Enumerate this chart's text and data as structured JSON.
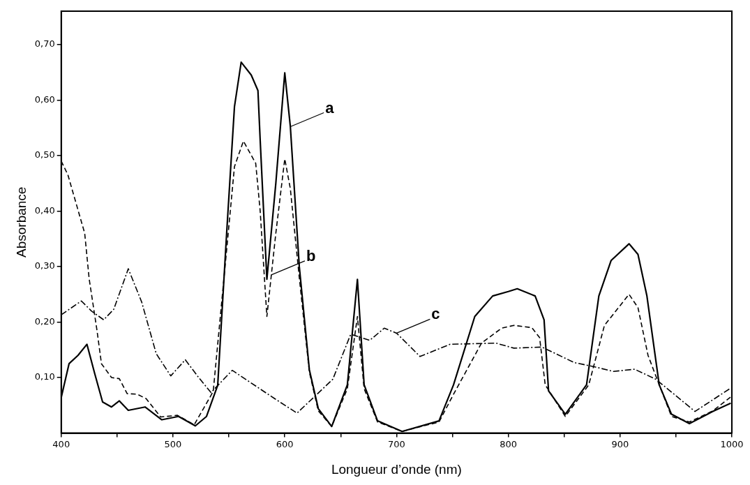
{
  "chart_data": {
    "type": "line",
    "xlabel": "Longueur d’onde (nm)",
    "ylabel": "Absorbance",
    "xlim": [
      400,
      1000
    ],
    "xticks": [
      400,
      {
        "value": 450,
        "label": null
      },
      500,
      {
        "value": 550,
        "label": null
      },
      600,
      {
        "value": 650,
        "label": null
      },
      700,
      {
        "value": 750,
        "label": null
      },
      800,
      {
        "value": 850,
        "label": null
      },
      900,
      {
        "value": 950,
        "label": null
      },
      1000
    ],
    "ylim": [
      0,
      0.76
    ],
    "yticks": [
      {
        "value": 0.1,
        "label": "0,10"
      },
      {
        "value": 0.2,
        "label": "0,20"
      },
      {
        "value": 0.3,
        "label": "0,30"
      },
      {
        "value": 0.4,
        "label": "0,40"
      },
      {
        "value": 0.5,
        "label": "0,50"
      },
      {
        "value": 0.6,
        "label": "0,60"
      },
      {
        "value": 0.7,
        "label": "0,70"
      }
    ],
    "grid": false,
    "legend": false,
    "marker": "none",
    "series": [
      {
        "color": "#000000",
        "line_style": "solid",
        "x": [
          400,
          407,
          415,
          423,
          430,
          437,
          445,
          452,
          460,
          475,
          490,
          505,
          520,
          530,
          540,
          548,
          555,
          561,
          570,
          576,
          578,
          584,
          592,
          600,
          605,
          613,
          622,
          630,
          642,
          656,
          665,
          671,
          683,
          705,
          738,
          751,
          770,
          786,
          800,
          808,
          824,
          832,
          836,
          851,
          870,
          881,
          892,
          908,
          916,
          924,
          935,
          946,
          962,
          983,
          999
        ],
        "values": [
          0.064,
          0.125,
          0.14,
          0.16,
          0.107,
          0.056,
          0.047,
          0.058,
          0.041,
          0.047,
          0.024,
          0.03,
          0.013,
          0.03,
          0.086,
          0.36,
          0.588,
          0.668,
          0.645,
          0.617,
          0.528,
          0.277,
          0.45,
          0.649,
          0.552,
          0.3,
          0.114,
          0.044,
          0.012,
          0.087,
          0.277,
          0.087,
          0.022,
          0.003,
          0.022,
          0.087,
          0.21,
          0.247,
          0.255,
          0.26,
          0.247,
          0.204,
          0.076,
          0.034,
          0.087,
          0.247,
          0.311,
          0.341,
          0.322,
          0.247,
          0.087,
          0.034,
          0.017,
          0.039,
          0.054
        ]
      },
      {
        "color": "#000000",
        "line_style": "dashed",
        "x": [
          400,
          406,
          421,
          425,
          432,
          436,
          445,
          452,
          459,
          468,
          476,
          489,
          504,
          519,
          536,
          548,
          555,
          563,
          574,
          578,
          584,
          592,
          600,
          605,
          613,
          622,
          630,
          642,
          656,
          665,
          671,
          683,
          705,
          738,
          751,
          776,
          794,
          805,
          821,
          828,
          833,
          851,
          872,
          886,
          908,
          916,
          925,
          935,
          946,
          962,
          983,
          999
        ],
        "values": [
          0.49,
          0.465,
          0.36,
          0.278,
          0.185,
          0.125,
          0.1,
          0.098,
          0.071,
          0.07,
          0.062,
          0.029,
          0.032,
          0.015,
          0.075,
          0.33,
          0.48,
          0.526,
          0.486,
          0.4,
          0.21,
          0.36,
          0.494,
          0.44,
          0.28,
          0.11,
          0.04,
          0.012,
          0.08,
          0.21,
          0.08,
          0.02,
          0.003,
          0.02,
          0.07,
          0.162,
          0.189,
          0.194,
          0.19,
          0.172,
          0.087,
          0.03,
          0.087,
          0.194,
          0.25,
          0.226,
          0.14,
          0.087,
          0.03,
          0.02,
          0.04,
          0.065
        ]
      },
      {
        "color": "#000000",
        "line_style": "dashdot",
        "x": [
          400,
          418,
          427,
          438,
          447,
          460,
          472,
          485,
          498,
          511,
          523,
          534,
          553,
          591,
          611,
          643,
          659,
          676,
          689,
          700,
          721,
          748,
          789,
          805,
          830,
          859,
          878,
          894,
          913,
          932,
          967,
          999
        ],
        "values": [
          0.213,
          0.238,
          0.22,
          0.204,
          0.223,
          0.296,
          0.236,
          0.143,
          0.103,
          0.132,
          0.1,
          0.073,
          0.113,
          0.062,
          0.036,
          0.097,
          0.178,
          0.167,
          0.189,
          0.18,
          0.138,
          0.16,
          0.162,
          0.153,
          0.155,
          0.127,
          0.119,
          0.111,
          0.115,
          0.097,
          0.039,
          0.081
        ]
      }
    ],
    "annotations": [
      {
        "text": "a",
        "x": 605,
        "y": 0.552
      },
      {
        "text": "b",
        "x": 588,
        "y": 0.285
      },
      {
        "text": "c",
        "x": 700,
        "y": 0.18
      }
    ]
  }
}
